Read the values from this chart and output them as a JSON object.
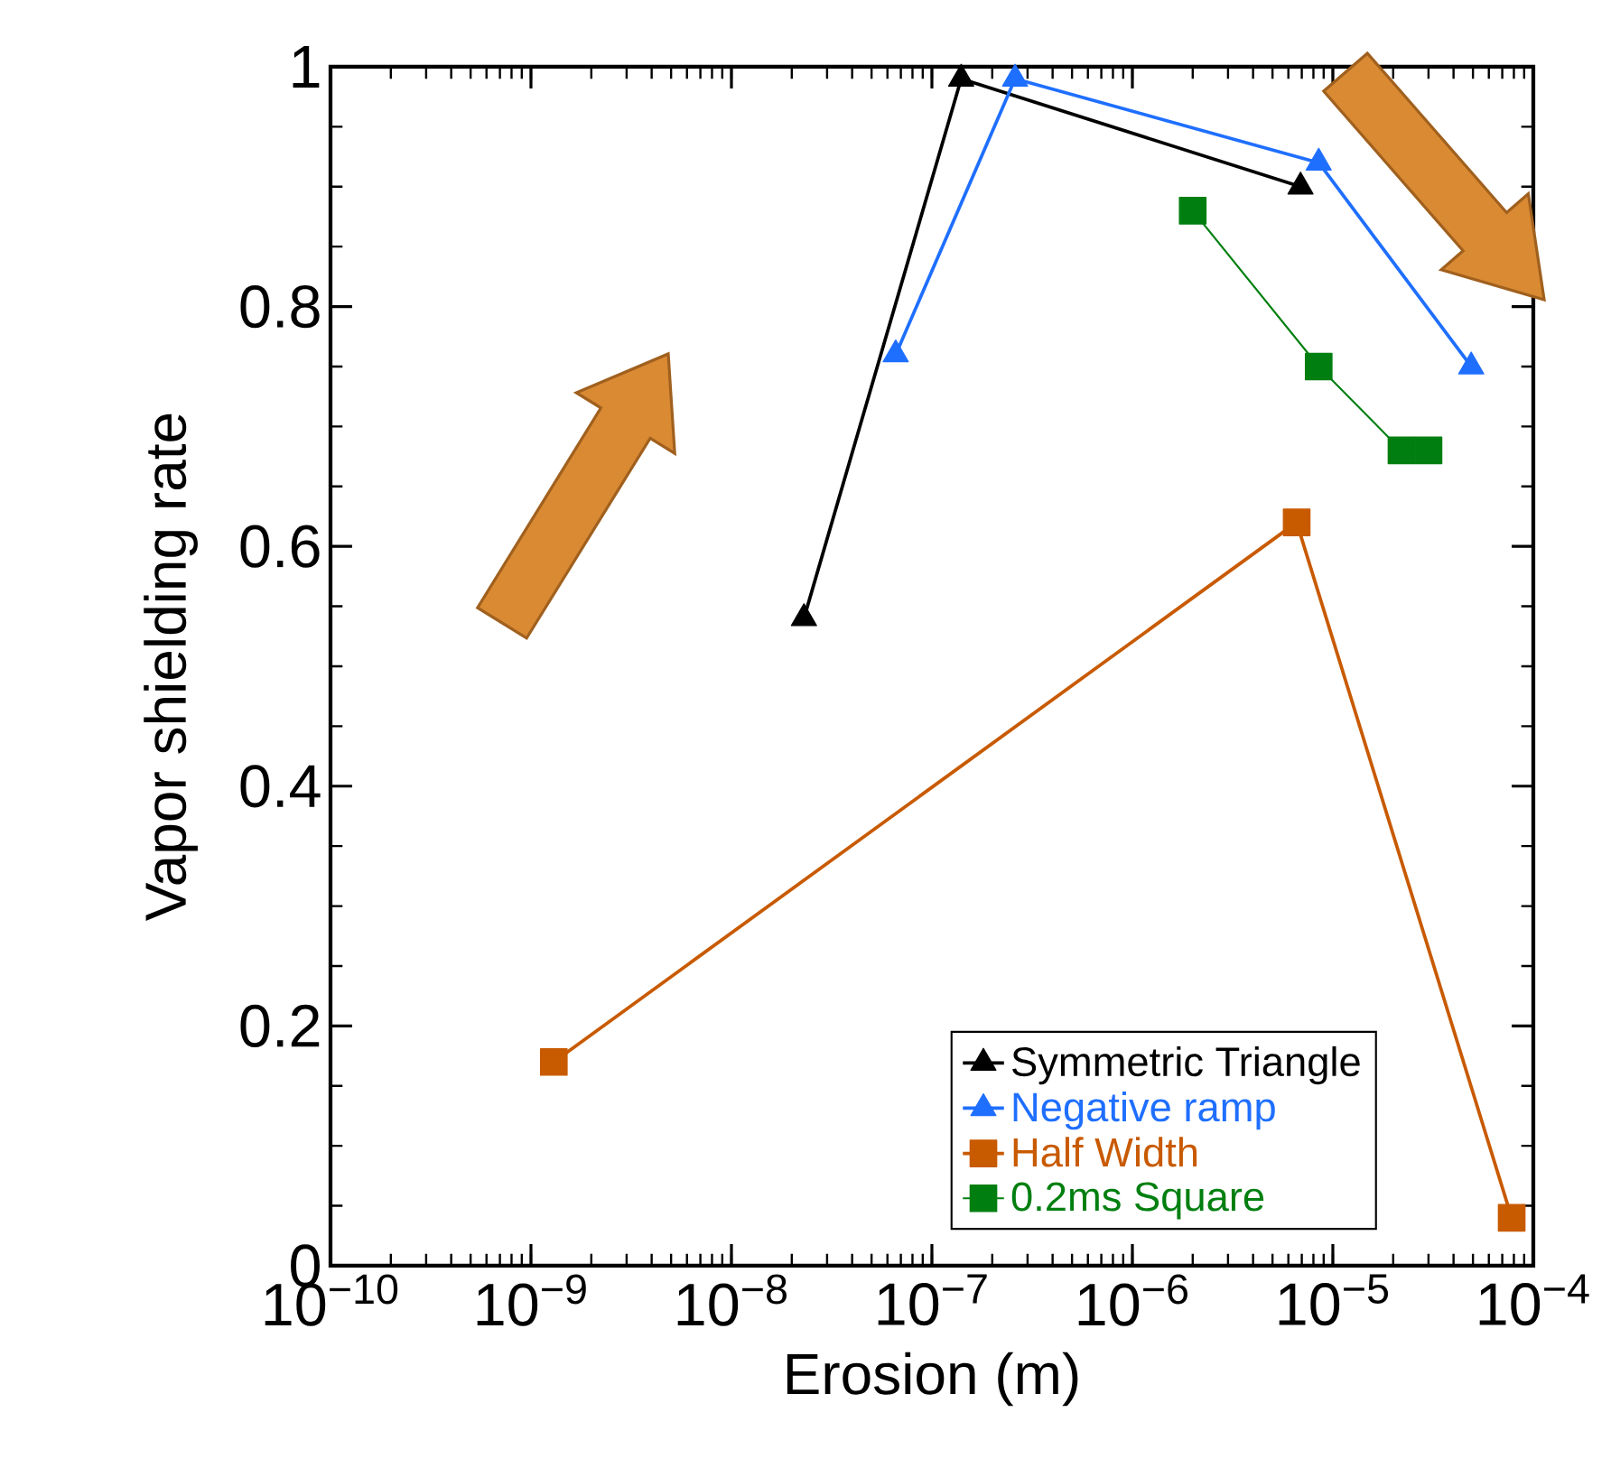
{
  "chart_data": {
    "type": "line",
    "xlabel": "Erosion (m)",
    "ylabel": "Vapor shielding rate",
    "log": "x",
    "xlim": [
      1e-10,
      0.0001
    ],
    "ylim": [
      0,
      1
    ],
    "xticks": [
      {
        "value": 1e-10,
        "label": "10$^{−10}$"
      },
      {
        "value": 1e-09,
        "label": "10$^{−9}$"
      },
      {
        "value": 1e-08,
        "label": "10$^{−8}$"
      },
      {
        "value": 1e-07,
        "label": "10$^{−7}$"
      },
      {
        "value": 1e-06,
        "label": "10$^{−6}$"
      },
      {
        "value": 1e-05,
        "label": "10$^{−5}$"
      },
      {
        "value": 0.0001,
        "label": "10$^{−4}$"
      }
    ],
    "yticks": [
      0,
      0.2,
      0.4,
      0.6,
      0.8,
      1
    ],
    "legend": "bottom right",
    "grid": false,
    "series": [
      {
        "name": "Symmetric Triangle",
        "color": "#000000",
        "marker": "triangle",
        "x": [
          2.3e-08,
          1.4e-07,
          6.9e-06
        ],
        "values": [
          0.54,
          0.99,
          0.9
        ]
      },
      {
        "name": "Negative ramp",
        "color": "#1f6fff",
        "marker": "triangle",
        "x": [
          6.6e-08,
          2.6e-07,
          8.5e-06,
          4.9e-05
        ],
        "values": [
          0.76,
          0.99,
          0.92,
          0.75
        ]
      },
      {
        "name": "Half Width",
        "color": "#c85a00",
        "marker": "square",
        "x": [
          1.3e-09,
          6.6e-06,
          7.8e-05
        ],
        "values": [
          0.17,
          0.62,
          0.04
        ]
      },
      {
        "name": "0.2ms Square",
        "color": "#007f10",
        "marker": "square",
        "x": [
          2e-06,
          8.5e-06,
          2.2e-05,
          3e-05
        ],
        "values": [
          0.88,
          0.75,
          0.68,
          0.68
        ]
      }
    ]
  }
}
